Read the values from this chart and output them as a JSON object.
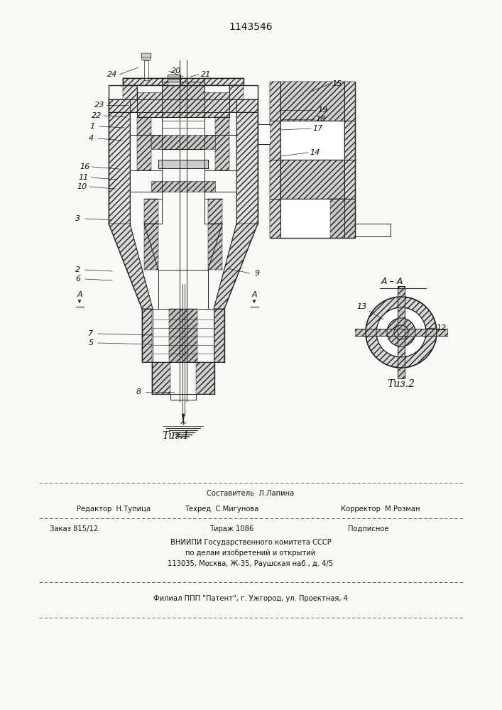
{
  "patent_number": "1143546",
  "fig1_caption": "Τиг.1",
  "fig2_caption": "Τиз.2",
  "section_label": "A – A",
  "footer_line1": "Составитель  Л.Лапина",
  "footer_line2_left": "Редактор  Н.Тупица",
  "footer_line2_mid": "Техред  С.Мигунова",
  "footer_line2_right": "Корректор  М.Розман",
  "footer_line3_left": "Заказ 815/12",
  "footer_line3_mid": "Тираж 1086",
  "footer_line3_right": "Подписное",
  "footer_line4": "ВНИИПИ Государственного комитета СССР",
  "footer_line5": "по делам изобретений и открытий",
  "footer_line6": "113035, Москва, Ж‑35, Раушская наб., д. 4/5",
  "footer_line7": "Филиал ППП \"Патент\", г. Ужгород, ул. Проектная, 4",
  "bg_color": "#f9f9f6",
  "text_color": "#111111"
}
